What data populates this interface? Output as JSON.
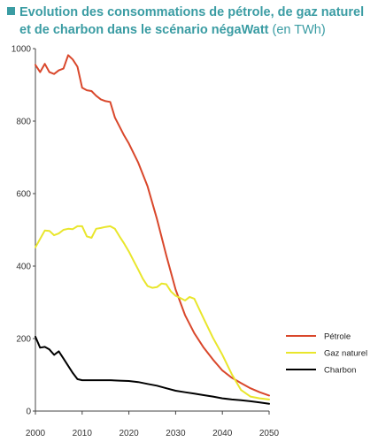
{
  "title": {
    "line1": "Evolution des consommations de pétrole, de gaz naturel",
    "line2": "et de charbon dans le scénario négaWatt",
    "unit": "(en TWh)"
  },
  "colors": {
    "title": "#3a9ca3",
    "petrole": "#d9472b",
    "gaz": "#e9e62c",
    "charbon": "#000000"
  },
  "chart_data": {
    "type": "line",
    "xlim": [
      2000,
      2050
    ],
    "ylim": [
      0,
      1000
    ],
    "x_ticks": [
      2000,
      2010,
      2020,
      2030,
      2040,
      2050
    ],
    "x_tick_labels": [
      "2000",
      "2010",
      "2020",
      "2030",
      "2040",
      "2050"
    ],
    "y_ticks": [
      0,
      200,
      400,
      600,
      800,
      1000
    ],
    "y_tick_labels": [
      "0",
      "200",
      "400",
      "600",
      "800",
      "1000"
    ],
    "grid": false,
    "legend_position": "right",
    "series": [
      {
        "name": "Pétrole",
        "color": "#d9472b",
        "x": [
          2000,
          2001,
          2002,
          2003,
          2004,
          2005,
          2006,
          2007,
          2008,
          2009,
          2010,
          2011,
          2012,
          2013,
          2014,
          2015,
          2016,
          2017,
          2018,
          2019,
          2020,
          2022,
          2024,
          2026,
          2028,
          2030,
          2032,
          2034,
          2036,
          2038,
          2040,
          2042,
          2044,
          2046,
          2048,
          2050
        ],
        "values": [
          955,
          935,
          958,
          935,
          930,
          940,
          945,
          982,
          970,
          950,
          892,
          885,
          883,
          870,
          860,
          855,
          853,
          810,
          785,
          760,
          738,
          685,
          620,
          530,
          430,
          335,
          265,
          215,
          175,
          142,
          112,
          92,
          77,
          63,
          52,
          43
        ]
      },
      {
        "name": "Gaz naturel",
        "color": "#e9e62c",
        "x": [
          2000,
          2001,
          2002,
          2003,
          2004,
          2005,
          2006,
          2007,
          2008,
          2009,
          2010,
          2011,
          2012,
          2013,
          2014,
          2015,
          2016,
          2017,
          2018,
          2019,
          2020,
          2021,
          2022,
          2023,
          2024,
          2025,
          2026,
          2027,
          2028,
          2029,
          2030,
          2031,
          2032,
          2033,
          2034,
          2036,
          2038,
          2040,
          2042,
          2044,
          2046,
          2048,
          2050
        ],
        "values": [
          452,
          475,
          498,
          497,
          485,
          490,
          500,
          503,
          502,
          510,
          510,
          482,
          478,
          503,
          505,
          508,
          510,
          503,
          482,
          462,
          440,
          415,
          390,
          365,
          345,
          340,
          342,
          352,
          350,
          330,
          318,
          312,
          305,
          315,
          310,
          255,
          202,
          155,
          102,
          58,
          40,
          35,
          32
        ]
      },
      {
        "name": "Charbon",
        "color": "#000000",
        "x": [
          2000,
          2001,
          2002,
          2003,
          2004,
          2005,
          2006,
          2007,
          2008,
          2009,
          2010,
          2012,
          2014,
          2016,
          2018,
          2020,
          2022,
          2024,
          2026,
          2028,
          2030,
          2032,
          2034,
          2036,
          2038,
          2040,
          2042,
          2044,
          2046,
          2048,
          2050
        ],
        "values": [
          205,
          175,
          177,
          170,
          155,
          165,
          145,
          125,
          105,
          88,
          85,
          85,
          85,
          85,
          84,
          83,
          80,
          75,
          70,
          63,
          56,
          52,
          48,
          44,
          40,
          35,
          32,
          30,
          27,
          24,
          20
        ]
      }
    ]
  }
}
